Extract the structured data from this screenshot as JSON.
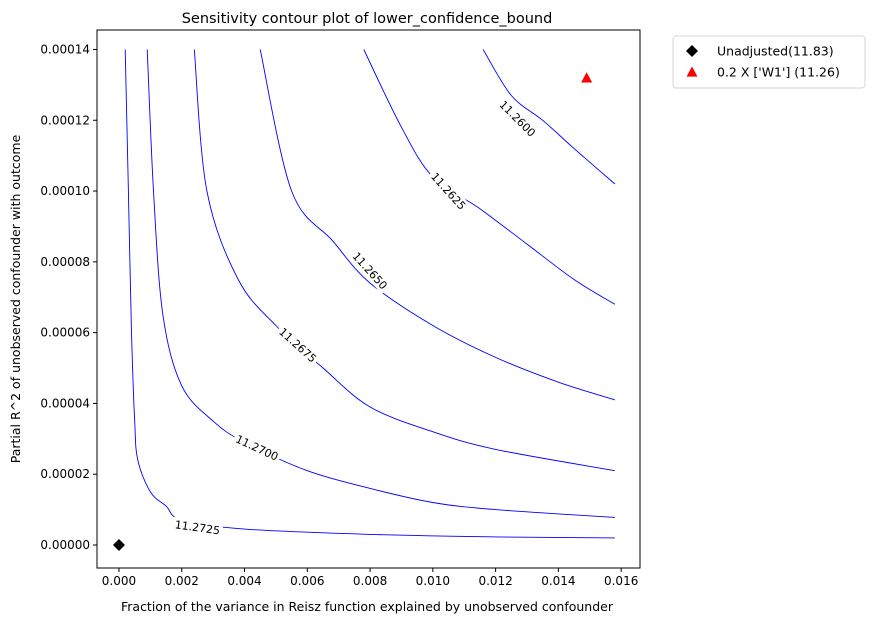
{
  "chart_data": {
    "type": "contour",
    "title": "Sensitivity contour plot of lower_confidence_bound",
    "xlabel": "Fraction of the variance in Reisz function explained by unobserved confounder",
    "ylabel": "Partial R^2 of unobserved confounder with outcome",
    "xlim": [
      -0.0007,
      0.0166
    ],
    "ylim": [
      -6.5e-06,
      0.0001455
    ],
    "x_ticks": [
      0.0,
      0.002,
      0.004,
      0.006,
      0.008,
      0.01,
      0.012,
      0.014,
      0.016
    ],
    "x_tick_labels": [
      "0.000",
      "0.002",
      "0.004",
      "0.006",
      "0.008",
      "0.010",
      "0.012",
      "0.014",
      "0.016"
    ],
    "y_ticks": [
      0.0,
      2e-05,
      4e-05,
      6e-05,
      8e-05,
      0.0001,
      0.00012,
      0.00014
    ],
    "y_tick_labels": [
      "0.00000",
      "0.00002",
      "0.00004",
      "0.00006",
      "0.00008",
      "0.00010",
      "0.00012",
      "0.00014"
    ],
    "grid": false,
    "contour_color": "#0000ff",
    "contours": [
      {
        "level_label": "11.2725",
        "label_at": [
          0.0025,
          5e-06
        ],
        "label_angle": 8,
        "points": [
          [
            0.0002,
            0.00014
          ],
          [
            0.0003,
            0.0001
          ],
          [
            0.0004,
            6e-05
          ],
          [
            0.0005,
            3.5e-05
          ],
          [
            0.0006,
            2.4e-05
          ],
          [
            0.001,
            1.5e-05
          ],
          [
            0.0015,
            1.1e-05
          ],
          [
            0.002,
            7e-06
          ],
          [
            0.004,
            4.5e-06
          ],
          [
            0.008,
            3e-06
          ],
          [
            0.012,
            2.3e-06
          ],
          [
            0.0158,
            2e-06
          ]
        ]
      },
      {
        "level_label": "11.2700",
        "label_at": [
          0.0044,
          2.75e-05
        ],
        "label_angle": 25,
        "points": [
          [
            0.0009,
            0.00014
          ],
          [
            0.0011,
            0.0001
          ],
          [
            0.0014,
            6.5e-05
          ],
          [
            0.002,
            4.5e-05
          ],
          [
            0.003,
            3.5e-05
          ],
          [
            0.004,
            2.9e-05
          ],
          [
            0.006,
            2.1e-05
          ],
          [
            0.008,
            1.6e-05
          ],
          [
            0.01,
            1.2e-05
          ],
          [
            0.012,
            1e-05
          ],
          [
            0.0158,
            7.8e-06
          ]
        ]
      },
      {
        "level_label": "11.2675",
        "label_at": [
          0.0057,
          5.65e-05
        ],
        "label_angle": 42,
        "points": [
          [
            0.0024,
            0.00014
          ],
          [
            0.0028,
            0.0001
          ],
          [
            0.0038,
            7.5e-05
          ],
          [
            0.005,
            6.2e-05
          ],
          [
            0.0065,
            5e-05
          ],
          [
            0.008,
            3.9e-05
          ],
          [
            0.01,
            3.2e-05
          ],
          [
            0.012,
            2.7e-05
          ],
          [
            0.0158,
            2.1e-05
          ]
        ]
      },
      {
        "level_label": "11.2650",
        "label_at": [
          0.008,
          7.75e-05
        ],
        "label_angle": 48,
        "points": [
          [
            0.0045,
            0.00014
          ],
          [
            0.0055,
            0.0001
          ],
          [
            0.0068,
            8.6e-05
          ],
          [
            0.008,
            7.4e-05
          ],
          [
            0.01,
            6.2e-05
          ],
          [
            0.012,
            5.3e-05
          ],
          [
            0.014,
            4.6e-05
          ],
          [
            0.0158,
            4.1e-05
          ]
        ]
      },
      {
        "level_label": "11.2625",
        "label_at": [
          0.0105,
          0.0001
        ],
        "label_angle": 48,
        "points": [
          [
            0.0078,
            0.00014
          ],
          [
            0.009,
            0.000118
          ],
          [
            0.01,
            0.000104
          ],
          [
            0.0115,
            9.5e-05
          ],
          [
            0.013,
            8.5e-05
          ],
          [
            0.0145,
            7.5e-05
          ],
          [
            0.0158,
            6.8e-05
          ]
        ]
      },
      {
        "level_label": "11.2600",
        "label_at": [
          0.0127,
          0.0001205
        ],
        "label_angle": 45,
        "points": [
          [
            0.0116,
            0.00014
          ],
          [
            0.0125,
            0.000127
          ],
          [
            0.0135,
            0.00012
          ],
          [
            0.0145,
            0.000112
          ],
          [
            0.0158,
            0.000102
          ]
        ]
      }
    ],
    "points": [
      {
        "name": "Unadjusted(11.83)",
        "x": 0.0,
        "y": 0.0,
        "marker": "diamond",
        "color": "#000000"
      },
      {
        "name": "0.2 X ['W1'] (11.26)",
        "x": 0.0149,
        "y": 0.000132,
        "marker": "triangle",
        "color": "#ff0000"
      }
    ],
    "legend": {
      "position": "outside-top-right",
      "entries": [
        "Unadjusted(11.83)",
        "0.2 X ['W1'] (11.26)"
      ]
    }
  }
}
